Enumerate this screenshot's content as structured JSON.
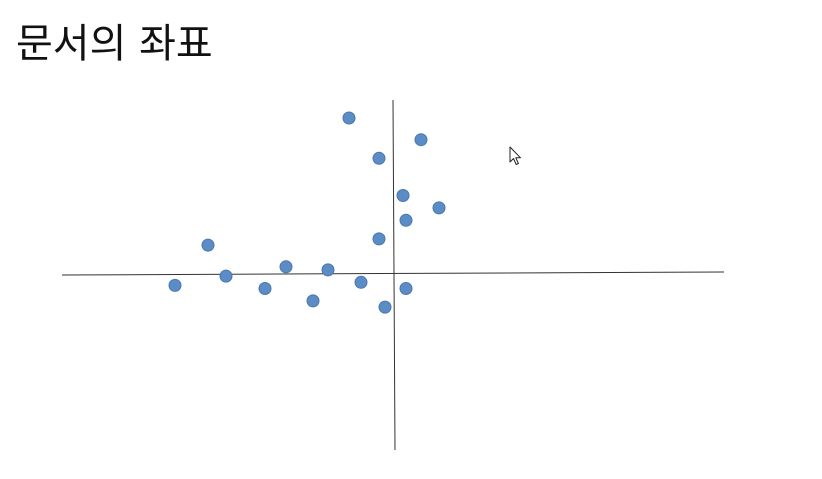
{
  "page": {
    "title": "문서의 좌표"
  },
  "colors": {
    "dot": "#5b8cc6",
    "dot_stroke": "#4a78ad",
    "axis": "#333333",
    "text": "#111111"
  },
  "icons": {
    "pointer": "mouse-pointer-icon"
  },
  "chart_data": {
    "type": "scatter",
    "title": "",
    "xlabel": "",
    "ylabel": "",
    "grid": false,
    "legend": "none",
    "xlim": [
      -11,
      11
    ],
    "ylim": [
      -6,
      6.5
    ],
    "points": [
      {
        "x": -1.5,
        "y": 5.0
      },
      {
        "x": -0.5,
        "y": 3.7
      },
      {
        "x": 0.9,
        "y": 4.3
      },
      {
        "x": 0.3,
        "y": 2.5
      },
      {
        "x": 1.5,
        "y": 2.1
      },
      {
        "x": 0.4,
        "y": 1.7
      },
      {
        "x": -0.5,
        "y": 1.1
      },
      {
        "x": -6.2,
        "y": 0.9
      },
      {
        "x": -3.6,
        "y": 0.2
      },
      {
        "x": -2.2,
        "y": 0.1
      },
      {
        "x": -5.6,
        "y": -0.1
      },
      {
        "x": -7.3,
        "y": -0.4
      },
      {
        "x": -4.3,
        "y": -0.5
      },
      {
        "x": -1.1,
        "y": -0.3
      },
      {
        "x": 0.4,
        "y": -0.5
      },
      {
        "x": -2.7,
        "y": -0.9
      },
      {
        "x": -0.3,
        "y": -1.1
      }
    ]
  }
}
